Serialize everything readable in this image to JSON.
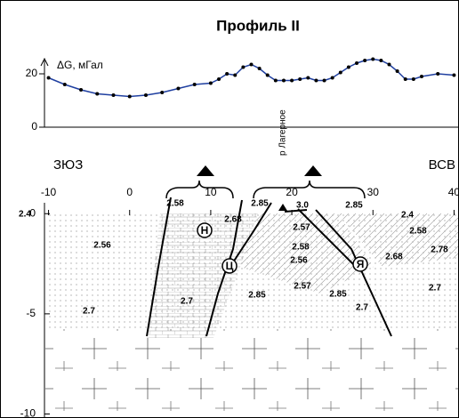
{
  "chart_data": [
    {
      "type": "line",
      "title": "Профиль II",
      "y_label": "ΔG, мГал",
      "color": "#1f3fa0",
      "x": [
        -10,
        -8,
        -6,
        -4,
        -2,
        0,
        2,
        4,
        6,
        8,
        10,
        11,
        12,
        13,
        14,
        15,
        16,
        17,
        18,
        19,
        20,
        21,
        22,
        23,
        24,
        25,
        26,
        27,
        28,
        29,
        30,
        31,
        32,
        33,
        34,
        35,
        36,
        38,
        40
      ],
      "values": [
        18.5,
        16,
        14,
        12.5,
        12,
        11.5,
        12,
        13,
        14.5,
        16,
        16.5,
        18,
        20,
        19.5,
        22.5,
        23.5,
        22,
        19.5,
        17.5,
        17.5,
        17.5,
        18,
        18.5,
        17.5,
        17.5,
        18.5,
        20.5,
        22.5,
        24,
        25,
        25.5,
        25,
        23.5,
        21,
        18,
        18,
        19,
        20,
        19.5
      ],
      "xlim": [
        -10.5,
        40.5
      ],
      "ylim": [
        -2,
        28
      ],
      "yticks": [
        0,
        20
      ]
    },
    {
      "type": "section",
      "left_direction": "ЗЮЗ",
      "right_direction": "ВСВ",
      "river_label": "р Лагерное",
      "xlim": [
        -10.5,
        40.5
      ],
      "xticks": [
        -10,
        0,
        10,
        20,
        30,
        40
      ],
      "ylim": [
        -10.2,
        0.5
      ],
      "yticks": [
        0,
        -5,
        -10
      ],
      "units": [
        "Н",
        "Ц",
        "Я"
      ],
      "density_labels": [
        "2.4",
        "2.56",
        "2.7",
        "2.58",
        "2.68",
        "2.85",
        "3.0",
        "2.57",
        "2.58",
        "2.56",
        "2.85",
        "2.4",
        "2.58",
        "2.68",
        "2.78",
        "2.57",
        "2.85",
        "2.85",
        "2.7",
        "2.7",
        "2.7"
      ]
    }
  ]
}
